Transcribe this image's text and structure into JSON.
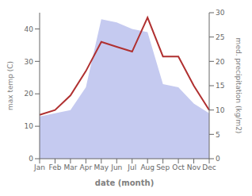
{
  "chart_data": {
    "type": "line",
    "xlabel": "date (month)",
    "ylabel": "max temp (C)",
    "y2label": "med. precipitation (kg/m2)",
    "categories": [
      "Jan",
      "Feb",
      "Mar",
      "Apr",
      "May",
      "Jun",
      "Jul",
      "Aug",
      "Sep",
      "Oct",
      "Nov",
      "Dec"
    ],
    "series": [
      {
        "type": "area",
        "color": "#c5caf0",
        "values": [
          13,
          14,
          15,
          22,
          43,
          42,
          40,
          39,
          23,
          22,
          17,
          14
        ]
      },
      {
        "type": "line",
        "axis": "y2",
        "color": "#b03030",
        "values": [
          9,
          10,
          13,
          18,
          24,
          23,
          22,
          29,
          21,
          21,
          15,
          10
        ]
      }
    ],
    "ylim": [
      0,
      45
    ],
    "yticks": [
      0,
      10,
      20,
      30,
      40
    ],
    "y2lim": [
      0,
      30
    ],
    "y2ticks": [
      0,
      5,
      10,
      15,
      20,
      25,
      30
    ],
    "grid": false
  }
}
